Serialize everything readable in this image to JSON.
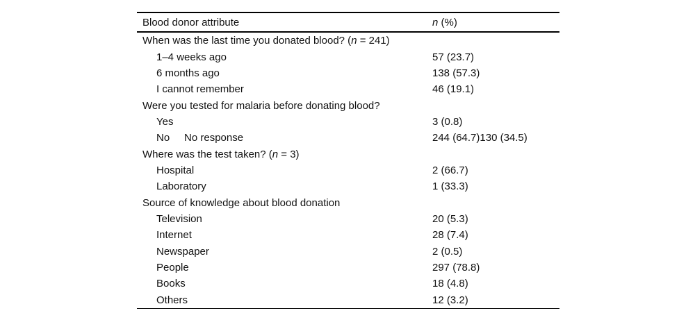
{
  "colors": {
    "background": "#ffffff",
    "text": "#111111",
    "rule": "#000000"
  },
  "table": {
    "header": {
      "col1": "Blood donor attribute",
      "col2_segments": [
        {
          "text": "n",
          "italic": true
        },
        {
          "text": " (%)",
          "italic": false
        }
      ]
    },
    "rows": [
      {
        "type": "section",
        "label_segments": [
          {
            "text": "When was the last time you donated blood? (",
            "italic": false
          },
          {
            "text": "n",
            "italic": true
          },
          {
            "text": " = 241)",
            "italic": false
          }
        ],
        "value": ""
      },
      {
        "type": "item",
        "label_segments": [
          {
            "text": "1–4 weeks ago",
            "italic": false
          }
        ],
        "value": "57 (23.7)"
      },
      {
        "type": "item",
        "label_segments": [
          {
            "text": "6 months ago",
            "italic": false
          }
        ],
        "value": "138 (57.3)"
      },
      {
        "type": "item",
        "label_segments": [
          {
            "text": "I cannot remember",
            "italic": false
          }
        ],
        "value": "46 (19.1)"
      },
      {
        "type": "section",
        "label_segments": [
          {
            "text": "Were you tested for malaria before donating blood?",
            "italic": false
          }
        ],
        "value": ""
      },
      {
        "type": "item",
        "label_segments": [
          {
            "text": "Yes",
            "italic": false
          }
        ],
        "value": "3 (0.8)"
      },
      {
        "type": "item",
        "label_segments": [
          {
            "text": "No     No response",
            "italic": false
          }
        ],
        "value": "244 (64.7)130 (34.5)"
      },
      {
        "type": "section",
        "label_segments": [
          {
            "text": "Where was the test taken? (",
            "italic": false
          },
          {
            "text": "n",
            "italic": true
          },
          {
            "text": " = 3)",
            "italic": false
          }
        ],
        "value": ""
      },
      {
        "type": "item",
        "label_segments": [
          {
            "text": "Hospital",
            "italic": false
          }
        ],
        "value": "2 (66.7)"
      },
      {
        "type": "item",
        "label_segments": [
          {
            "text": "Laboratory",
            "italic": false
          }
        ],
        "value": "1 (33.3)"
      },
      {
        "type": "section",
        "label_segments": [
          {
            "text": "Source of knowledge about blood donation",
            "italic": false
          }
        ],
        "value": ""
      },
      {
        "type": "item",
        "label_segments": [
          {
            "text": "Television",
            "italic": false
          }
        ],
        "value": "20 (5.3)"
      },
      {
        "type": "item",
        "label_segments": [
          {
            "text": "Internet",
            "italic": false
          }
        ],
        "value": "28 (7.4)"
      },
      {
        "type": "item",
        "label_segments": [
          {
            "text": "Newspaper",
            "italic": false
          }
        ],
        "value": "2 (0.5)"
      },
      {
        "type": "item",
        "label_segments": [
          {
            "text": "People",
            "italic": false
          }
        ],
        "value": "297 (78.8)"
      },
      {
        "type": "item",
        "label_segments": [
          {
            "text": "Books",
            "italic": false
          }
        ],
        "value": "18 (4.8)"
      },
      {
        "type": "item",
        "label_segments": [
          {
            "text": "Others",
            "italic": false
          }
        ],
        "value": "12 (3.2)"
      }
    ]
  }
}
